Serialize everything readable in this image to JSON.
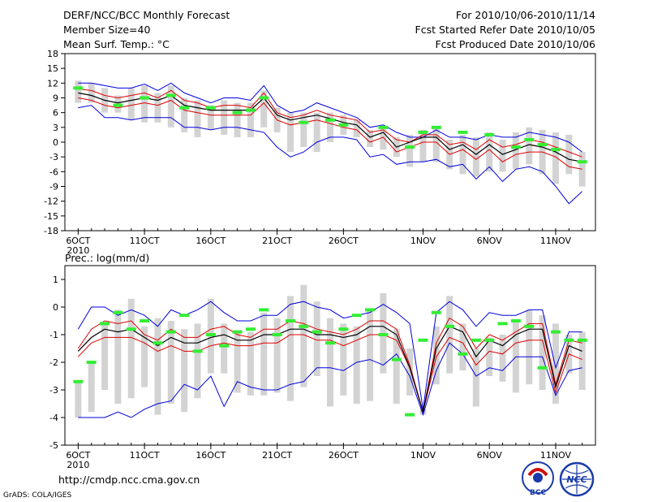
{
  "header": {
    "line1_left": "DERF/NCC/BCC Monthly Forecast",
    "line2_left": "Member Size=40",
    "line3_left": "Mean Surf. Temp.: °C",
    "line1_right": "For 2010/10/06-2010/11/14",
    "line2_right": "Fcst Started Refer Date 2010/10/05",
    "line3_right": "Fcst Produced Date 2010/10/06"
  },
  "footer": {
    "url": "http://cmdp.ncc.cma.gov.cn",
    "grads": "GrADS: COLA/IGES"
  },
  "logos": {
    "bcc_text": "BCC",
    "ncc_text": "NCC"
  },
  "colors": {
    "max_min": "#0000dd",
    "quartile": "#dd0000",
    "mean": "#000000",
    "box": "#d3d3d3",
    "obs": "#33ee33"
  },
  "chart_data": [
    {
      "type": "line",
      "title": "Mean Surf. Temp.: °C",
      "x_tick_labels": [
        "6OCT",
        "11OCT",
        "16OCT",
        "21OCT",
        "26OCT",
        "1NOV",
        "6NOV",
        "11NOV"
      ],
      "x_tick_days": [
        1,
        6,
        11,
        16,
        21,
        27,
        32,
        37
      ],
      "x_extra_label": "2010",
      "xlim": [
        0,
        40
      ],
      "ylim": [
        -18,
        18
      ],
      "y_ticks": [
        -18,
        -15,
        -12,
        -9,
        -6,
        -3,
        0,
        3,
        6,
        9,
        12,
        15,
        18
      ],
      "days": [
        1,
        2,
        3,
        4,
        5,
        6,
        7,
        8,
        9,
        10,
        11,
        12,
        13,
        14,
        15,
        16,
        17,
        18,
        19,
        20,
        21,
        22,
        23,
        24,
        25,
        26,
        27,
        28,
        29,
        30,
        31,
        32,
        33,
        34,
        35,
        36,
        37,
        38,
        39
      ],
      "max": [
        12,
        12,
        11.5,
        11,
        11,
        11.8,
        10.5,
        12,
        10,
        9,
        8,
        9,
        9,
        8.5,
        11.5,
        7.5,
        6,
        6.5,
        8,
        7,
        6,
        5,
        3,
        3.5,
        2,
        1,
        1,
        2.5,
        1,
        1,
        0.5,
        1.5,
        1,
        1,
        2,
        1.5,
        1,
        0,
        -2
      ],
      "upper_quartile": [
        10.8,
        10.5,
        9.5,
        9,
        9.5,
        10,
        9,
        10.5,
        8.5,
        8,
        7,
        7.5,
        7.5,
        7,
        10,
        6,
        5,
        5.5,
        6.5,
        5.5,
        5,
        4.5,
        2,
        2.5,
        0.5,
        0,
        1.5,
        1.5,
        -0.5,
        0,
        -1.5,
        0.5,
        -1,
        -0.5,
        0.5,
        0,
        -1,
        -2,
        -3
      ],
      "mean": [
        10,
        9.5,
        8.5,
        8,
        8.5,
        9,
        8.5,
        9.5,
        7.5,
        7,
        6.5,
        6.5,
        6.5,
        6.5,
        9,
        5.5,
        4.5,
        5,
        5.5,
        4.8,
        4,
        3.5,
        1,
        2,
        -1,
        0,
        1,
        1,
        -1.5,
        -0.5,
        -2.5,
        -0.5,
        -2.5,
        -1.5,
        -0.5,
        -1,
        -2,
        -3.5,
        -4
      ],
      "lower_quartile": [
        9,
        8.5,
        7.5,
        7,
        7.5,
        8,
        7.5,
        8.5,
        6.5,
        6,
        5.5,
        5.5,
        5.5,
        5.5,
        8,
        4.5,
        3.5,
        4,
        4.5,
        3.8,
        3,
        2.5,
        0,
        1,
        -2,
        -1,
        0,
        0,
        -2.5,
        -1.5,
        -3.5,
        -1.5,
        -4,
        -2.5,
        -2,
        -2,
        -3,
        -5,
        -5.5
      ],
      "min": [
        7,
        7.5,
        5,
        5,
        4.5,
        5,
        5,
        5,
        3,
        3,
        2.5,
        3,
        3,
        2.5,
        2,
        -1,
        -3,
        -2,
        0,
        1,
        1,
        0.5,
        -3,
        -2.5,
        -4.5,
        -4,
        -4,
        -3.5,
        -5,
        -4.5,
        -7.5,
        -5,
        -8,
        -5.5,
        -5,
        -6,
        -9,
        -12.5,
        -10
      ],
      "box_high": [
        12.5,
        12,
        11,
        9.5,
        11,
        11.5,
        10,
        11.5,
        9,
        8.5,
        7.5,
        8.5,
        8,
        8,
        10.5,
        7,
        6,
        6,
        6,
        6,
        5.5,
        4.5,
        2.5,
        3,
        1,
        1.5,
        2.5,
        3,
        0.5,
        1.5,
        1,
        2,
        0.5,
        2,
        3,
        2.5,
        2,
        1.5,
        -2
      ],
      "box_low": [
        8,
        8,
        6,
        6,
        4.5,
        4,
        4,
        3,
        2,
        1,
        2.5,
        1.5,
        1,
        1,
        3,
        2,
        -2,
        -1,
        -2,
        0,
        1.5,
        1,
        -1,
        -1.5,
        -3,
        -5,
        -4,
        -4,
        -5.5,
        -6.5,
        -7,
        -6,
        -6,
        -5.5,
        -4.5,
        -6.5,
        -8.5,
        -6.5,
        -9
      ],
      "observed": [
        11,
        null,
        null,
        7.5,
        null,
        9,
        null,
        9.5,
        7,
        null,
        7,
        null,
        6,
        6.5,
        9,
        null,
        null,
        4,
        null,
        4.5,
        3.5,
        null,
        null,
        3,
        null,
        -1,
        2,
        3,
        null,
        2,
        null,
        1.5,
        null,
        -1,
        0.5,
        -0.5,
        -1.5,
        null,
        -4
      ]
    },
    {
      "type": "line",
      "title": "Prec.: log(mm/d)",
      "x_tick_labels": [
        "6OCT",
        "11OCT",
        "16OCT",
        "21OCT",
        "26OCT",
        "1NOV",
        "6NOV",
        "11NOV"
      ],
      "x_tick_days": [
        1,
        6,
        11,
        16,
        21,
        27,
        32,
        37
      ],
      "x_extra_label": "2010",
      "xlim": [
        0,
        40
      ],
      "ylim": [
        -5,
        1.5
      ],
      "y_ticks": [
        -5,
        -4,
        -3,
        -2,
        -1,
        0,
        1
      ],
      "days": [
        1,
        2,
        3,
        4,
        5,
        6,
        7,
        8,
        9,
        10,
        11,
        12,
        13,
        14,
        15,
        16,
        17,
        18,
        19,
        20,
        21,
        22,
        23,
        24,
        25,
        26,
        27,
        28,
        29,
        30,
        31,
        32,
        33,
        34,
        35,
        36,
        37,
        38,
        39
      ],
      "max": [
        -0.8,
        0,
        0,
        -0.3,
        -0.1,
        -0.3,
        -0.7,
        -0.1,
        -0.3,
        -0.1,
        0.2,
        -0.2,
        -0.5,
        -0.5,
        -0.3,
        -0.3,
        0.1,
        0.2,
        0,
        -0.1,
        -0.4,
        -0.3,
        -0.2,
        0.1,
        -0.2,
        -0.6,
        -3.7,
        -0.2,
        0.2,
        -0.1,
        -0.7,
        -0.2,
        -0.3,
        -0.3,
        -0.1,
        -0.1,
        -2.2,
        -0.9,
        -0.9
      ],
      "upper_quartile": [
        -1.5,
        -0.8,
        -0.5,
        -0.6,
        -0.5,
        -1,
        -1.2,
        -0.8,
        -1.1,
        -1.1,
        -0.8,
        -0.7,
        -1,
        -1.1,
        -0.8,
        -0.8,
        -0.5,
        -0.6,
        -0.8,
        -0.9,
        -1,
        -0.8,
        -0.5,
        -0.5,
        -0.8,
        -2.1,
        -3.8,
        -1.3,
        -0.4,
        -0.7,
        -1.5,
        -1,
        -1.2,
        -0.9,
        -0.6,
        -0.6,
        -2.8,
        -1.2,
        -1.3
      ],
      "mean": [
        -1.6,
        -1.1,
        -0.8,
        -0.9,
        -0.8,
        -1.1,
        -1.4,
        -1.1,
        -1.3,
        -1.3,
        -1.1,
        -1,
        -1.2,
        -1.2,
        -1,
        -1,
        -0.8,
        -0.8,
        -1,
        -1,
        -1.1,
        -1,
        -0.7,
        -0.7,
        -1,
        -2.2,
        -3.8,
        -1.5,
        -0.7,
        -0.9,
        -1.8,
        -1.2,
        -1.4,
        -1,
        -0.8,
        -0.8,
        -2.9,
        -1.4,
        -1.6
      ],
      "lower_quartile": [
        -1.8,
        -1.3,
        -1.1,
        -1.1,
        -1.1,
        -1.3,
        -1.6,
        -1.4,
        -1.6,
        -1.6,
        -1.4,
        -1.3,
        -1.4,
        -1.4,
        -1.3,
        -1.3,
        -1,
        -1,
        -1.2,
        -1.2,
        -1.4,
        -1.2,
        -1,
        -1,
        -1.2,
        -2.2,
        -3.8,
        -1.8,
        -1.1,
        -1.3,
        -2.1,
        -1.6,
        -1.7,
        -1.3,
        -1.2,
        -1.2,
        -3.1,
        -1.7,
        -1.9
      ],
      "min": [
        -4,
        -4,
        -4,
        -3.8,
        -4,
        -3.7,
        -3.5,
        -3.4,
        -2.8,
        -3,
        -2.5,
        -3.6,
        -2.7,
        -2.9,
        -3,
        -3,
        -2.8,
        -2.7,
        -2.2,
        -2.2,
        -2.3,
        -2,
        -1.9,
        -2.1,
        -1.7,
        -2.5,
        -3.9,
        -2.3,
        -1.3,
        -1.7,
        -2.5,
        -2.2,
        -2.3,
        -1.8,
        -1.8,
        -1.8,
        -3.2,
        -2.3,
        -2.2
      ],
      "box_high": [
        -2.7,
        -2,
        -0.6,
        -0.1,
        0.3,
        -0.7,
        -0.4,
        -0.5,
        -0.8,
        -0.6,
        0.3,
        -0.6,
        -0.9,
        -0.9,
        -0.2,
        -0.4,
        0.4,
        0.8,
        0.2,
        -0.4,
        -0.6,
        -0.7,
        -0.1,
        0.5,
        -0.8,
        -1.5,
        -3.7,
        -0.7,
        0.4,
        -0.6,
        -1.5,
        -1.1,
        -1,
        -0.5,
        -0.1,
        -0.3,
        -0.6,
        -1,
        -0.9
      ],
      "box_low": [
        -4,
        -3.8,
        -3,
        -3.5,
        -3.3,
        -2.9,
        -3.9,
        -3.5,
        -3.8,
        -3.3,
        -2.4,
        -2.4,
        -3.1,
        -3.2,
        -3.2,
        -3.1,
        -3.4,
        -2.9,
        -2.5,
        -3.6,
        -3.2,
        -3.5,
        -3.4,
        -2.4,
        -3.5,
        -3.2,
        -3.9,
        -2.8,
        -2.4,
        -2.3,
        -3.6,
        -2.5,
        -2.7,
        -3.1,
        -2.8,
        -3,
        -3.5,
        -2.4,
        -3
      ],
      "observed": [
        -2.7,
        -2,
        -0.6,
        -0.2,
        -0.8,
        -0.5,
        -1.3,
        -0.9,
        -0.3,
        -1.6,
        -1,
        -1.4,
        -0.9,
        -0.8,
        -0.1,
        -1,
        -0.5,
        -0.7,
        -0.9,
        -1.3,
        -0.8,
        -0.3,
        -0.1,
        -1,
        -1.9,
        -3.9,
        -1.2,
        -0.2,
        -0.7,
        -1.7,
        -1.2,
        -1.2,
        -0.6,
        -0.5,
        -0.7,
        -2.2,
        -0.9,
        -1.2,
        -1.2
      ]
    }
  ]
}
